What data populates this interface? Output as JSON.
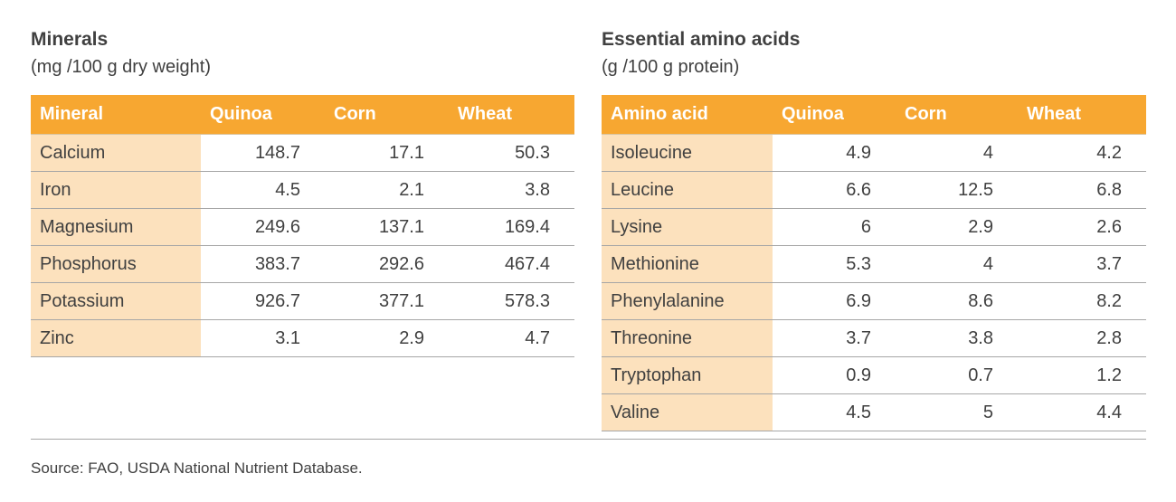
{
  "minerals": {
    "title": "Minerals",
    "subtitle": "(mg /100 g dry weight)",
    "headers": [
      "Mineral",
      "Quinoa",
      "Corn",
      "Wheat"
    ],
    "rows": [
      [
        "Calcium",
        "148.7",
        "17.1",
        "50.3"
      ],
      [
        "Iron",
        "4.5",
        "2.1",
        "3.8"
      ],
      [
        "Magnesium",
        "249.6",
        "137.1",
        "169.4"
      ],
      [
        "Phosphorus",
        "383.7",
        "292.6",
        "467.4"
      ],
      [
        "Potassium",
        "926.7",
        "377.1",
        "578.3"
      ],
      [
        "Zinc",
        "3.1",
        "2.9",
        "4.7"
      ]
    ]
  },
  "amino_acids": {
    "title": "Essential amino acids",
    "subtitle": "(g /100 g protein)",
    "headers": [
      "Amino acid",
      "Quinoa",
      "Corn",
      "Wheat"
    ],
    "rows": [
      [
        "Isoleucine",
        "4.9",
        "4",
        "4.2"
      ],
      [
        "Leucine",
        "6.6",
        "12.5",
        "6.8"
      ],
      [
        "Lysine",
        "6",
        "2.9",
        "2.6"
      ],
      [
        "Methionine",
        "5.3",
        "4",
        "3.7"
      ],
      [
        "Phenylalanine",
        "6.9",
        "8.6",
        "8.2"
      ],
      [
        "Threonine",
        "3.7",
        "3.8",
        "2.8"
      ],
      [
        "Tryptophan",
        "0.9",
        "0.7",
        "1.2"
      ],
      [
        "Valine",
        "4.5",
        "5",
        "4.4"
      ]
    ]
  },
  "source": "Source: FAO, USDA National Nutrient Database.",
  "colors": {
    "header_bg": "#f7a731",
    "label_bg": "#fce1bd",
    "text": "#404040"
  }
}
